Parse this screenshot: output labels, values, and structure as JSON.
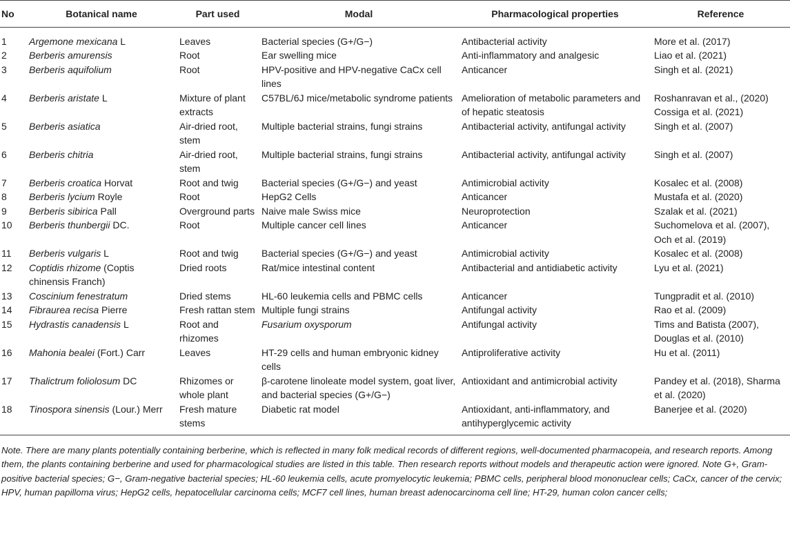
{
  "table": {
    "header": [
      "No",
      "Botanical name",
      "Part used",
      "Modal",
      "Pharmacological properties",
      "Reference"
    ],
    "rows": [
      {
        "no": "1",
        "botanical": {
          "italic": "Argemone mexicana",
          "plain": "L"
        },
        "part": "Leaves",
        "modal": "Bacterial species (G+/G−)",
        "pharm": "Antibacterial activity",
        "reference": "More et al. (2017)"
      },
      {
        "no": "2",
        "botanical": {
          "italic": "Berberis amurensis"
        },
        "part": "Root",
        "modal": "Ear swelling mice",
        "pharm": "Anti-inflammatory and analgesic",
        "reference": "Liao et al. (2021)"
      },
      {
        "no": "3",
        "botanical": {
          "italic": "Berberis aquifolium"
        },
        "part": "Root",
        "modal": "HPV-positive and HPV-negative CaCx cell lines",
        "pharm": "Anticancer",
        "reference": "Singh et al. (2021)"
      },
      {
        "no": "4",
        "botanical": {
          "italic": "Berberis aristate",
          "plain": "L"
        },
        "part": "Mixture of plant extracts",
        "modal": "C57BL/6J mice/metabolic syndrome patients",
        "pharm": "Amelioration of metabolic parameters and of hepatic steatosis",
        "reference": "Roshanravan et al., (2020) Cossiga et al. (2021)"
      },
      {
        "no": "5",
        "botanical": {
          "italic": "Berberis asiatica"
        },
        "part": "Air-dried root, stem",
        "modal": "Multiple bacterial strains, fungi strains",
        "pharm": "Antibacterial activity, antifungal activity",
        "reference": "Singh et al. (2007)"
      },
      {
        "no": "6",
        "botanical": {
          "italic": "Berberis chitria"
        },
        "part": "Air-dried root, stem",
        "modal": "Multiple bacterial strains, fungi strains",
        "pharm": "Antibacterial activity, antifungal activity",
        "reference": "Singh et al. (2007)"
      },
      {
        "no": "7",
        "botanical": {
          "italic": "Berberis croatica",
          "plain": "Horvat"
        },
        "part": "Root and twig",
        "modal": "Bacterial species (G+/G−) and yeast",
        "pharm": "Antimicrobial activity",
        "reference": "Kosalec et al. (2008)"
      },
      {
        "no": "8",
        "botanical": {
          "italic": "Berberis lycium",
          "plain": "Royle"
        },
        "part": "Root",
        "modal": "HepG2 Cells",
        "pharm": "Anticancer",
        "reference": "Mustafa et al. (2020)"
      },
      {
        "no": "9",
        "botanical": {
          "italic": "Berberis sibirica",
          "plain": "Pall"
        },
        "part": "Overground parts",
        "modal": "Naive male Swiss mice",
        "pharm": "Neuroprotection",
        "reference": "Szalak et al. (2021)"
      },
      {
        "no": "10",
        "botanical": {
          "italic": "Berberis thunbergii",
          "plain": "DC."
        },
        "part": "Root",
        "modal": "Multiple cancer cell lines",
        "pharm": "Anticancer",
        "reference": "Suchomelova et al. (2007), Och et al. (2019)"
      },
      {
        "no": "11",
        "botanical": {
          "italic": "Berberis vulgaris",
          "plain": "L"
        },
        "part": "Root and twig",
        "modal": "Bacterial species (G+/G−) and yeast",
        "pharm": "Antimicrobial activity",
        "reference": "Kosalec et al. (2008)"
      },
      {
        "no": "12",
        "botanical": {
          "italic": "Coptidis rhizome",
          "plain": "(Coptis chinensis Franch)"
        },
        "part": "Dried roots",
        "modal": "Rat/mice intestinal content",
        "pharm": "Antibacterial and antidiabetic activity",
        "reference": "Lyu et al. (2021)"
      },
      {
        "no": "13",
        "botanical": {
          "italic": "Coscinium fenestratum"
        },
        "part": "Dried stems",
        "modal": "HL-60 leukemia cells and PBMC cells",
        "pharm": "Anticancer",
        "reference": "Tungpradit et al. (2010)"
      },
      {
        "no": "14",
        "botanical": {
          "italic": "Fibraurea recisa",
          "plain": "Pierre"
        },
        "part": "Fresh rattan stem",
        "modal": "Multiple fungi strains",
        "pharm": "Antifungal activity",
        "reference": "Rao et al. (2009)"
      },
      {
        "no": "15",
        "botanical": {
          "italic": "Hydrastis canadensis",
          "plain": "L"
        },
        "part": "Root and rhizomes",
        "modal": "Fusarium oxysporum",
        "modal_style": "italic",
        "pharm": "Antifungal activity",
        "reference": "Tims and Batista (2007), Douglas et al. (2010)"
      },
      {
        "no": "16",
        "botanical": {
          "italic": "Mahonia bealei",
          "plain": "(Fort.) Carr"
        },
        "part": "Leaves",
        "modal": "HT-29 cells and human embryonic kidney cells",
        "pharm": "Antiproliferative activity",
        "reference": "Hu et al. (2011)"
      },
      {
        "no": "17",
        "botanical": {
          "italic": "Thalictrum foliolosum",
          "plain": "DC"
        },
        "part": "Rhizomes or whole plant",
        "modal": "β-carotene linoleate model system, goat liver, and bacterial species (G+/G−)",
        "pharm": "Antioxidant and antimicrobial activity",
        "reference": "Pandey et al. (2018), Sharma et al. (2020)"
      },
      {
        "no": "18",
        "botanical": {
          "italic": "Tinospora sinensis",
          "plain": "(Lour.) Merr"
        },
        "part": "Fresh mature stems",
        "modal": "Diabetic rat model",
        "pharm": "Antioxidant, anti-inflammatory, and antihyperglycemic activity",
        "reference": "Banerjee et al. (2020)"
      }
    ]
  },
  "note": "Note. There are many plants potentially containing berberine, which is reflected in many folk medical records of different regions, well-documented pharmacopeia, and research reports. Among them, the plants containing berberine and used for pharmacological studies are listed in this table. Then research reports without models and therapeutic action were ignored. Note G+, Gram-positive bacterial species; G−, Gram-negative bacterial species; HL-60 leukemia cells, acute promyelocytic leukemia; PBMC cells, peripheral blood mononuclear cells; CaCx, cancer of the cervix; HPV, human papilloma virus; HepG2 cells, hepatocellular carcinoma cells; MCF7 cell lines, human breast adenocarcinoma cell line; HT-29, human colon cancer cells;"
}
